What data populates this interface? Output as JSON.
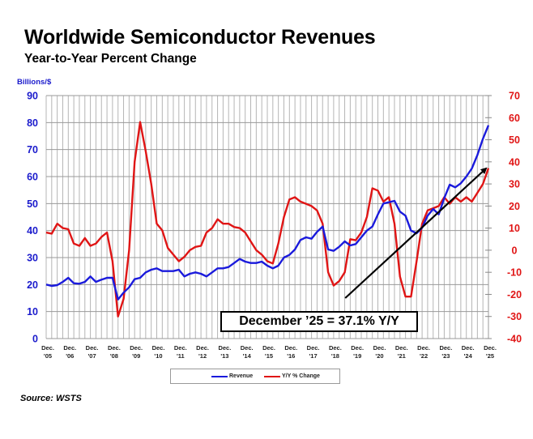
{
  "title": "Worldwide Semiconductor Revenues",
  "subtitle": "Year-to-Year Percent Change",
  "source": "Source: WSTS",
  "annotation": "December ’25 = 37.1% Y/Y",
  "legend": [
    {
      "name": "Revenue",
      "color": "#1a1adc"
    },
    {
      "name": "Y/Y % Change",
      "color": "#e01515"
    }
  ],
  "chart_data": {
    "type": "line",
    "title": "Worldwide Semiconductor Revenues",
    "subtitle": "Year-to-Year Percent Change",
    "ylabel_left": "Billions/$",
    "ylabel_right": "",
    "xlabel": "",
    "ylim_left": [
      0,
      90
    ],
    "ylim_right": [
      -40,
      70
    ],
    "yticks_left": [
      "0",
      "10",
      "20",
      "30",
      "40",
      "50",
      "60",
      "70",
      "80",
      "90"
    ],
    "yticks_right": [
      "-40",
      "-30",
      "-20",
      "-10",
      "0",
      "10",
      "20",
      "30",
      "40",
      "50",
      "60",
      "70"
    ],
    "x_tick_labels": [
      [
        "Dec.",
        "'05"
      ],
      [
        "Dec.",
        "'06"
      ],
      [
        "Dec.",
        "'07"
      ],
      [
        "Dec.",
        "'08"
      ],
      [
        "Dec.",
        "'09"
      ],
      [
        "Dec.",
        "'10"
      ],
      [
        "Dec.",
        "'11"
      ],
      [
        "Dec.",
        "'12"
      ],
      [
        "Dec.",
        "'13"
      ],
      [
        "Dec.",
        "'14"
      ],
      [
        "Dec.",
        "'15"
      ],
      [
        "Dec.",
        "'16"
      ],
      [
        "Dec.",
        "'17"
      ],
      [
        "Dec.",
        "'18"
      ],
      [
        "Dec.",
        "'19"
      ],
      [
        "Dec.",
        "'20"
      ],
      [
        "Dec.",
        "'21"
      ],
      [
        "Dec.",
        "'22"
      ],
      [
        "Dec.",
        "'23"
      ],
      [
        "Dec.",
        "'24"
      ],
      [
        "Dec.",
        "'25"
      ]
    ],
    "grid": true,
    "legend_position": "bottom-center",
    "x_resolution": "quarterly, Dec '05 to Dec '25",
    "series": [
      {
        "name": "Revenue",
        "axis": "left",
        "color": "#1a1adc",
        "values": [
          20.0,
          19.5,
          19.8,
          21.0,
          22.5,
          20.5,
          20.3,
          21.0,
          23.0,
          21.0,
          21.8,
          22.5,
          22.5,
          14.5,
          17.0,
          19.0,
          22.0,
          22.5,
          24.5,
          25.5,
          26.0,
          25.0,
          25.0,
          25.0,
          25.5,
          23.0,
          24.0,
          24.5,
          24.0,
          23.0,
          24.5,
          26.0,
          26.0,
          26.5,
          28.0,
          29.5,
          28.5,
          28.0,
          28.0,
          28.5,
          27.0,
          26.0,
          27.0,
          30.0,
          31.0,
          33.0,
          36.5,
          37.5,
          37.0,
          39.5,
          41.5,
          33.0,
          32.5,
          34.0,
          36.0,
          34.5,
          35.0,
          37.5,
          40.0,
          41.5,
          46.0,
          50.0,
          50.5,
          51.0,
          47.0,
          45.5,
          40.0,
          39.0,
          41.0,
          45.5,
          48.0,
          46.0,
          52.0,
          57.0,
          56.0,
          57.5,
          60.0,
          63.0,
          68.0,
          74.0,
          79.0
        ]
      },
      {
        "name": "Y/Y % Change",
        "axis": "right",
        "color": "#e01515",
        "values": [
          8.0,
          7.5,
          12.0,
          10.0,
          9.5,
          3.0,
          2.0,
          5.5,
          2.0,
          3.0,
          6.0,
          8.0,
          -5.0,
          -30.0,
          -22.0,
          0.0,
          40.0,
          58.0,
          45.0,
          30.0,
          12.0,
          9.0,
          1.0,
          -2.0,
          -5.0,
          -3.0,
          0.0,
          1.5,
          2.0,
          8.0,
          10.0,
          14.0,
          12.0,
          12.0,
          10.5,
          10.0,
          8.0,
          4.0,
          0.0,
          -2.0,
          -5.0,
          -6.0,
          3.0,
          15.0,
          23.0,
          24.0,
          22.0,
          21.0,
          20.0,
          18.0,
          12.0,
          -10.0,
          -16.0,
          -14.0,
          -10.0,
          5.0,
          4.5,
          8.0,
          15.0,
          28.0,
          27.0,
          22.0,
          24.0,
          12.0,
          -12.0,
          -21.0,
          -21.0,
          -5.0,
          12.0,
          18.0,
          19.0,
          20.0,
          24.0,
          21.0,
          24.0,
          22.0,
          24.0,
          22.0,
          26.0,
          30.0,
          37.1
        ]
      }
    ],
    "annotations": [
      {
        "text": "December ’25 = 37.1% Y/Y",
        "type": "text-box"
      },
      {
        "type": "arrow",
        "from": {
          "x": "Dec '19",
          "y_left": 15
        },
        "to": {
          "x": "Dec '25",
          "y_left": 63
        }
      }
    ]
  }
}
